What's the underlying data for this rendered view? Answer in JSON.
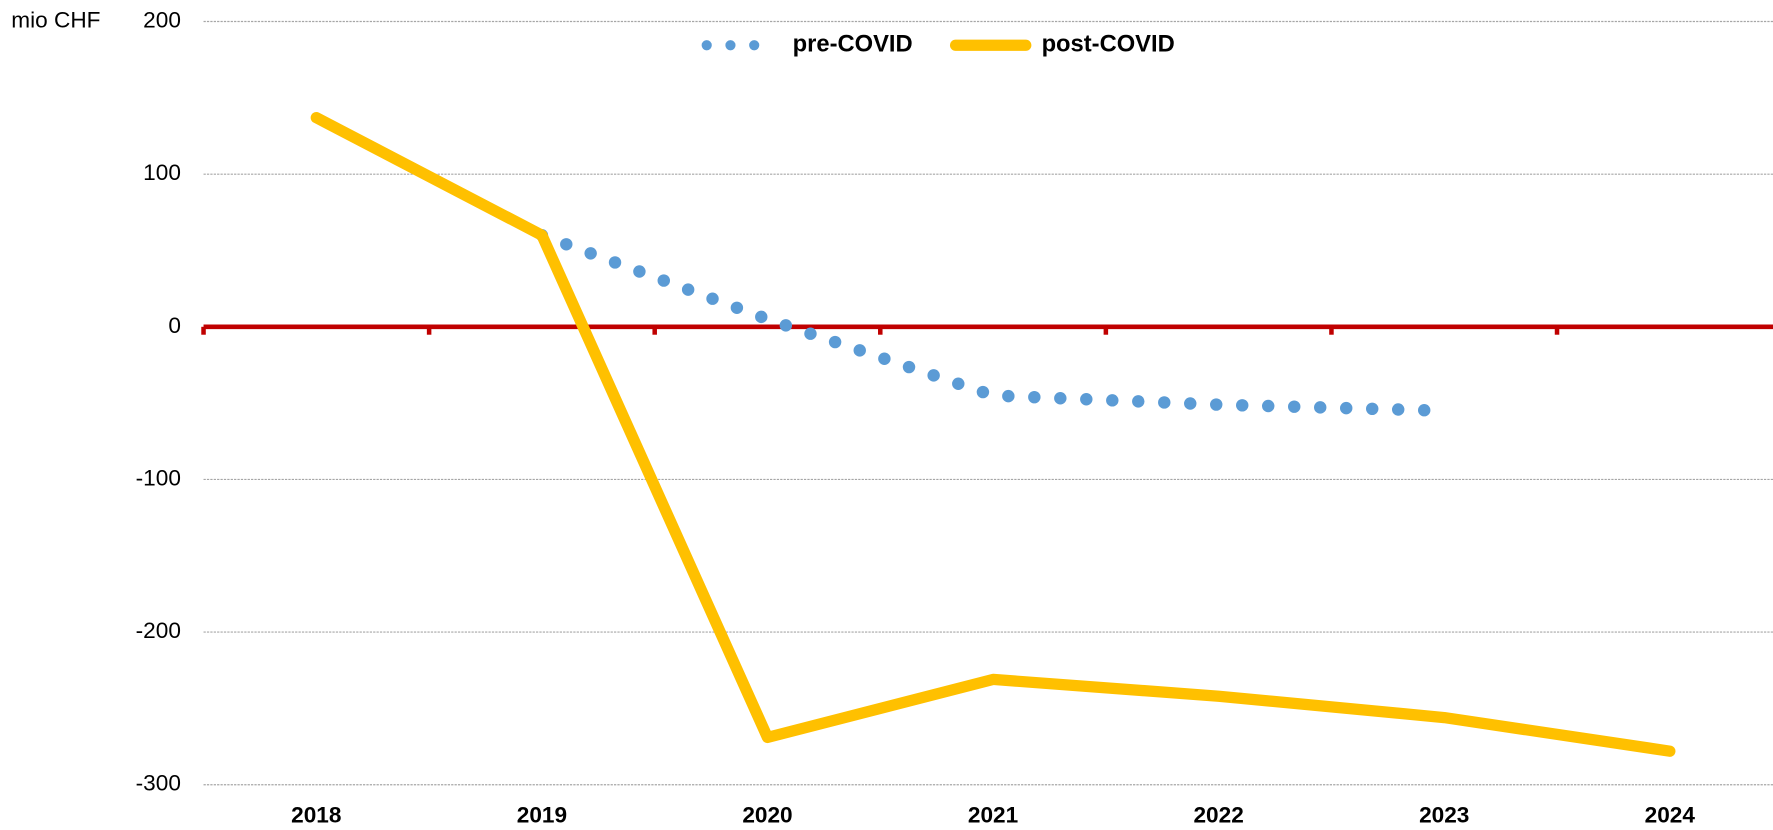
{
  "chart_data": {
    "type": "line",
    "y_axis_label": "mio CHF",
    "categories": [
      "2018",
      "2019",
      "2020",
      "2021",
      "2022",
      "2023",
      "2024"
    ],
    "series": [
      {
        "name": "pre-COVID",
        "color": "#5b9bd5",
        "style": "dotted",
        "values": [
          null,
          60,
          5,
          -45,
          -51,
          -55,
          null
        ]
      },
      {
        "name": "post-COVID",
        "color": "#ffc000",
        "style": "solid",
        "values": [
          137,
          60,
          -269,
          -231,
          -242,
          -256,
          -278
        ]
      }
    ],
    "ylim": [
      -300,
      200
    ],
    "yticks": [
      -300,
      -200,
      -100,
      0,
      100,
      200
    ],
    "grid": true,
    "zero_line_color": "#c00000",
    "legend": "top"
  }
}
